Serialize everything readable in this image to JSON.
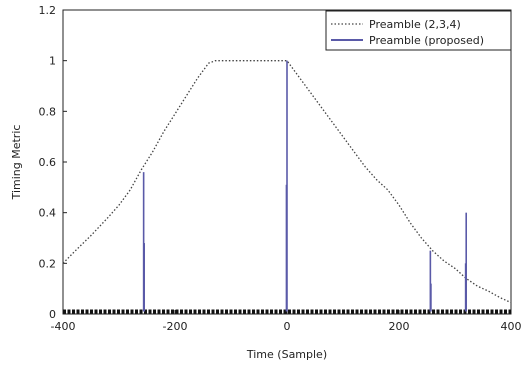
{
  "chart_data": {
    "type": "line",
    "xlabel": "Time (Sample)",
    "ylabel": "Timing Metric",
    "xlim": [
      -400,
      400
    ],
    "ylim": [
      0,
      1.2
    ],
    "x_ticks": [
      -400,
      -200,
      0,
      200,
      400
    ],
    "y_ticks": [
      0,
      0.2,
      0.4,
      0.6,
      0.8,
      1,
      1.2
    ],
    "x_tick_labels": [
      "-400",
      "-200",
      "0",
      "200",
      "400"
    ],
    "y_tick_labels": [
      "0",
      "0.2",
      "0.4",
      "0.6",
      "0.8",
      "1",
      "1.2"
    ],
    "grid": false,
    "legend_position": "top-right",
    "series": [
      {
        "name": "Preamble (2,3,4)",
        "style": "dotted",
        "color": "#444444",
        "x": [
          -400,
          -380,
          -350,
          -320,
          -300,
          -280,
          -260,
          -240,
          -220,
          -200,
          -180,
          -160,
          -140,
          -128,
          -100,
          -60,
          -20,
          0,
          20,
          40,
          60,
          80,
          100,
          120,
          140,
          160,
          180,
          200,
          220,
          240,
          260,
          280,
          300,
          320,
          340,
          360,
          380,
          400
        ],
        "y": [
          0.2,
          0.245,
          0.31,
          0.38,
          0.43,
          0.49,
          0.57,
          0.64,
          0.72,
          0.79,
          0.86,
          0.93,
          0.99,
          1.0,
          1.0,
          1.0,
          1.0,
          1.0,
          0.94,
          0.88,
          0.82,
          0.76,
          0.7,
          0.64,
          0.58,
          0.53,
          0.49,
          0.43,
          0.36,
          0.3,
          0.25,
          0.21,
          0.18,
          0.14,
          0.11,
          0.09,
          0.065,
          0.045
        ]
      },
      {
        "name": "Preamble (proposed)",
        "style": "stem",
        "color": "#5a5aa8",
        "baseline": 0.01,
        "x": [
          -256,
          -255,
          -1,
          0,
          256,
          257,
          319,
          320
        ],
        "y": [
          0.56,
          0.28,
          0.51,
          1.0,
          0.25,
          0.12,
          0.2,
          0.4
        ]
      }
    ]
  }
}
